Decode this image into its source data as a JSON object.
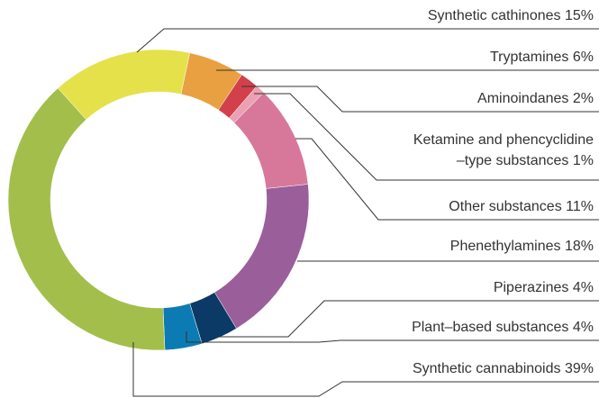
{
  "chart_data": {
    "type": "donut",
    "categories": [
      "Synthetic cathinones",
      "Tryptamines",
      "Aminoindanes",
      "Ketamine and phencyclidine\n–type substances",
      "Other substances",
      "Phenethylamines",
      "Piperazines",
      "Plant–based substances",
      "Synthetic cannabinoids"
    ],
    "values": [
      15,
      6,
      2,
      1,
      11,
      18,
      4,
      4,
      39
    ],
    "value_labels": [
      "15%",
      "6%",
      "2%",
      "1%",
      "11%",
      "18%",
      "4%",
      "4%",
      "39%"
    ],
    "colors": [
      "#e5e14b",
      "#e8a040",
      "#d2404b",
      "#eba0b3",
      "#d7789b",
      "#9a5e9a",
      "#0b3a66",
      "#0d7bb3",
      "#a3be4b"
    ]
  }
}
